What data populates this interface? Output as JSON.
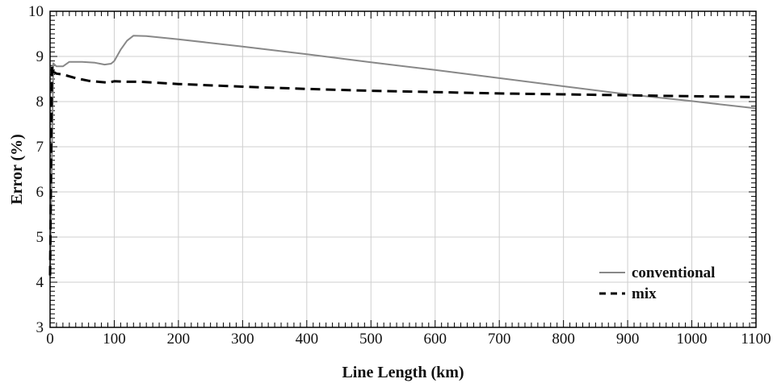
{
  "chart_data": {
    "type": "line",
    "title": "",
    "xlabel": "Line Length (km)",
    "ylabel": "Error (%)",
    "xlim": [
      0,
      1100
    ],
    "ylim": [
      3,
      10
    ],
    "x_ticks": [
      "0",
      "100",
      "200",
      "300",
      "400",
      "500",
      "600",
      "700",
      "800",
      "900",
      "1000",
      "1100"
    ],
    "y_ticks": [
      "3",
      "4",
      "5",
      "6",
      "7",
      "8",
      "9",
      "10"
    ],
    "grid": true,
    "legend_position": "bottom-right",
    "series": [
      {
        "name": "conventional",
        "color": "#888888",
        "style": "solid",
        "x": [
          0,
          5,
          10,
          20,
          30,
          50,
          70,
          85,
          95,
          100,
          110,
          120,
          130,
          150,
          200,
          300,
          400,
          500,
          600,
          700,
          800,
          900,
          1000,
          1100
        ],
        "y": [
          4.15,
          8.85,
          8.78,
          8.78,
          8.88,
          8.88,
          8.86,
          8.82,
          8.84,
          8.9,
          9.15,
          9.35,
          9.46,
          9.45,
          9.38,
          9.22,
          9.05,
          8.87,
          8.7,
          8.52,
          8.34,
          8.16,
          8.01,
          7.85
        ]
      },
      {
        "name": "mix",
        "color": "#000000",
        "style": "dashed",
        "x": [
          0,
          3,
          5,
          10,
          20,
          40,
          60,
          90,
          100,
          120,
          140,
          200,
          300,
          400,
          500,
          600,
          700,
          800,
          900,
          1000,
          1100
        ],
        "y": [
          4.15,
          8.8,
          8.66,
          8.62,
          8.6,
          8.52,
          8.46,
          8.42,
          8.45,
          8.44,
          8.44,
          8.39,
          8.33,
          8.28,
          8.24,
          8.21,
          8.18,
          8.16,
          8.14,
          8.12,
          8.1
        ]
      }
    ]
  }
}
